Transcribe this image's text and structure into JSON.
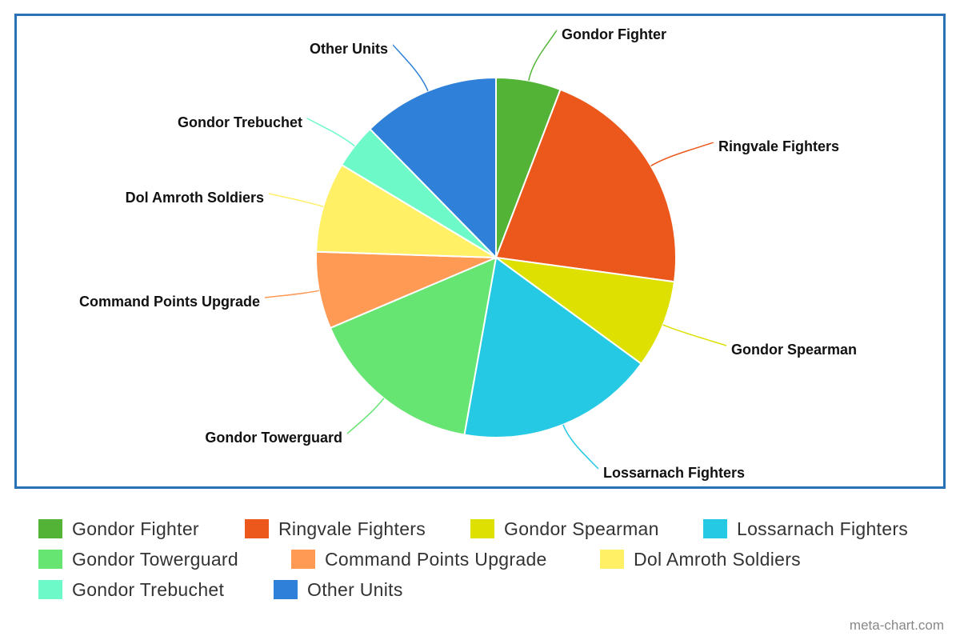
{
  "chart_data": {
    "type": "pie",
    "start_angle_deg": 0,
    "direction": "clockwise",
    "legend_position": "bottom",
    "slices": [
      {
        "name": "Gondor Fighter",
        "value": 5.9,
        "color": "#52b336"
      },
      {
        "name": "Ringvale Fighters",
        "value": 21.6,
        "color": "#ec581b"
      },
      {
        "name": "Gondor Spearman",
        "value": 8.0,
        "color": "#dde001"
      },
      {
        "name": "Lossarnach Fighters",
        "value": 18.0,
        "color": "#26c9e4"
      },
      {
        "name": "Gondor Towerguard",
        "value": 16.0,
        "color": "#66e572"
      },
      {
        "name": "Command Points Upgrade",
        "value": 7.0,
        "color": "#ff9a55"
      },
      {
        "name": "Dol Amroth Soldiers",
        "value": 8.2,
        "color": "#fff066"
      },
      {
        "name": "Gondor Trebuchet",
        "value": 4.1,
        "color": "#6ef9c9"
      },
      {
        "name": "Other Units",
        "value": 12.5,
        "color": "#2f80d9"
      }
    ]
  },
  "frame_color": "#2a72b6",
  "credit": "meta-chart.com"
}
